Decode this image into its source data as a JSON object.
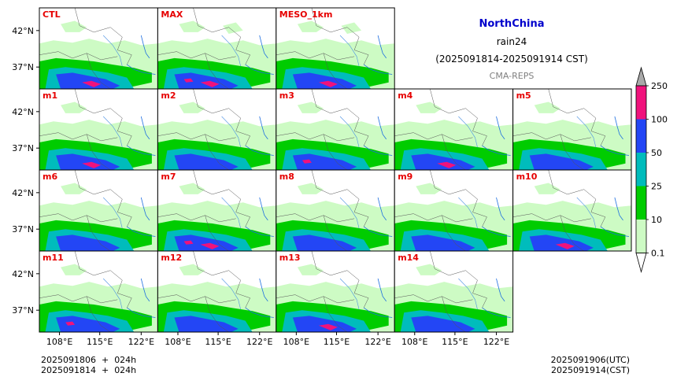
{
  "title": {
    "region": "NorthChina",
    "variable": "rain24",
    "period": "(2025091814-2025091914 CST)",
    "system": "CMA-REPS",
    "region_color": "#0000cc",
    "system_color": "#808080"
  },
  "panels": [
    {
      "label": "CTL",
      "row": 0,
      "col": 0
    },
    {
      "label": "MAX",
      "row": 0,
      "col": 1
    },
    {
      "label": "MESO_1km",
      "row": 0,
      "col": 2
    },
    {
      "label": "m1",
      "row": 1,
      "col": 0
    },
    {
      "label": "m2",
      "row": 1,
      "col": 1
    },
    {
      "label": "m3",
      "row": 1,
      "col": 2
    },
    {
      "label": "m4",
      "row": 1,
      "col": 3
    },
    {
      "label": "m5",
      "row": 1,
      "col": 4
    },
    {
      "label": "m6",
      "row": 2,
      "col": 0
    },
    {
      "label": "m7",
      "row": 2,
      "col": 1
    },
    {
      "label": "m8",
      "row": 2,
      "col": 2
    },
    {
      "label": "m9",
      "row": 2,
      "col": 3
    },
    {
      "label": "m10",
      "row": 2,
      "col": 4
    },
    {
      "label": "m11",
      "row": 3,
      "col": 0
    },
    {
      "label": "m12",
      "row": 3,
      "col": 1
    },
    {
      "label": "m13",
      "row": 3,
      "col": 2
    },
    {
      "label": "m14",
      "row": 3,
      "col": 3
    }
  ],
  "panel_label_color": "#e60000",
  "lat_ticks": [
    "42°N",
    "37°N"
  ],
  "lon_ticks": [
    "108°E",
    "115°E",
    "122°E"
  ],
  "colorbar": {
    "levels": [
      "0.1",
      "10",
      "25",
      "50",
      "100",
      "250"
    ],
    "colors": [
      "#cdfbc4",
      "#00cc00",
      "#00bcbc",
      "#2346f5",
      "#f0127c",
      "#a9a9a9"
    ]
  },
  "footer": {
    "init_line1": "2025091806  +  024h",
    "init_line2": "2025091814  +  024h",
    "valid_line1": "2025091906(UTC)",
    "valid_line2": "2025091914(CST)"
  },
  "chart_data": {
    "type": "heatmap",
    "title": "NorthChina rain24 (2025091814-2025091914 CST) CMA-REPS",
    "x_ticks": [
      "108°E",
      "115°E",
      "122°E"
    ],
    "y_ticks": [
      "42°N",
      "37°N"
    ],
    "legend": "right colorbar",
    "rain_categories_mm": [
      0.1,
      10,
      25,
      50,
      100,
      250
    ]
  }
}
